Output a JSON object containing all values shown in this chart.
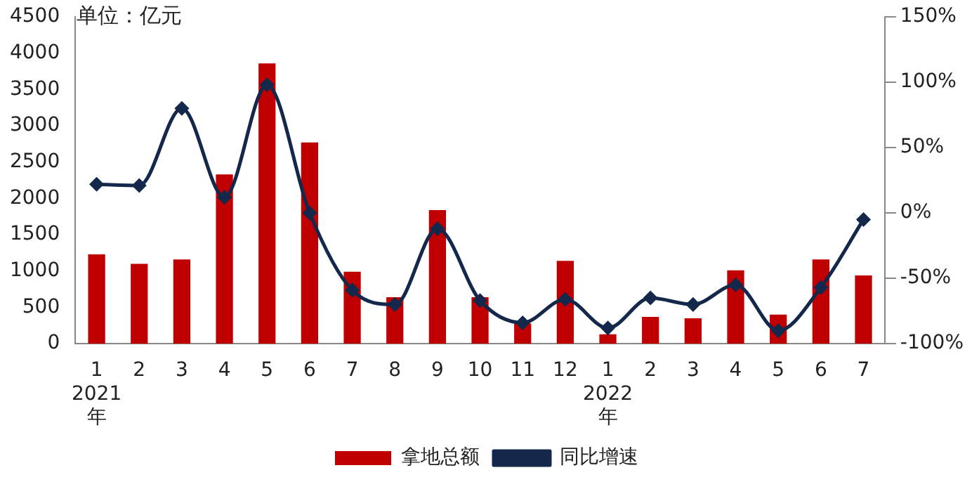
{
  "chart_data": {
    "type": "bar",
    "ylabel": "单位：亿元",
    "categories": [
      "1\n2021\n年",
      "2",
      "3",
      "4",
      "5",
      "6",
      "7",
      "8",
      "9",
      "10",
      "11",
      "12",
      "1\n2022\n年",
      "2",
      "3",
      "4",
      "5",
      "6",
      "7"
    ],
    "series": [
      {
        "name": "拿地总额",
        "color": "#c00000",
        "values": [
          1230,
          1100,
          1160,
          2330,
          3860,
          2770,
          990,
          640,
          1840,
          640,
          280,
          1140,
          130,
          370,
          350,
          1010,
          400,
          1160,
          940
        ]
      },
      {
        "name": "同比增速",
        "type": "line",
        "axis": "y2",
        "color": "#14284b",
        "marker": "diamond",
        "values": [
          22,
          21,
          80,
          12,
          98,
          0,
          -59,
          -70,
          -12,
          -67,
          -84,
          -66,
          -88,
          -65,
          -70,
          -55,
          -90,
          -57,
          -5
        ]
      }
    ],
    "ylim": [
      0,
      4500
    ],
    "yticks": [
      0,
      500,
      1000,
      1500,
      2000,
      2500,
      3000,
      3500,
      4000,
      4500
    ],
    "y2lim": [
      -100,
      150
    ],
    "y2ticks": [
      {
        "value": -100,
        "label": "-100%"
      },
      {
        "value": -50,
        "label": "-50%"
      },
      {
        "value": 0,
        "label": "0%"
      },
      {
        "value": 50,
        "label": "50%"
      },
      {
        "value": 100,
        "label": "100%"
      },
      {
        "value": 150,
        "label": "150%"
      }
    ],
    "grid": false,
    "legend": "bottom"
  }
}
